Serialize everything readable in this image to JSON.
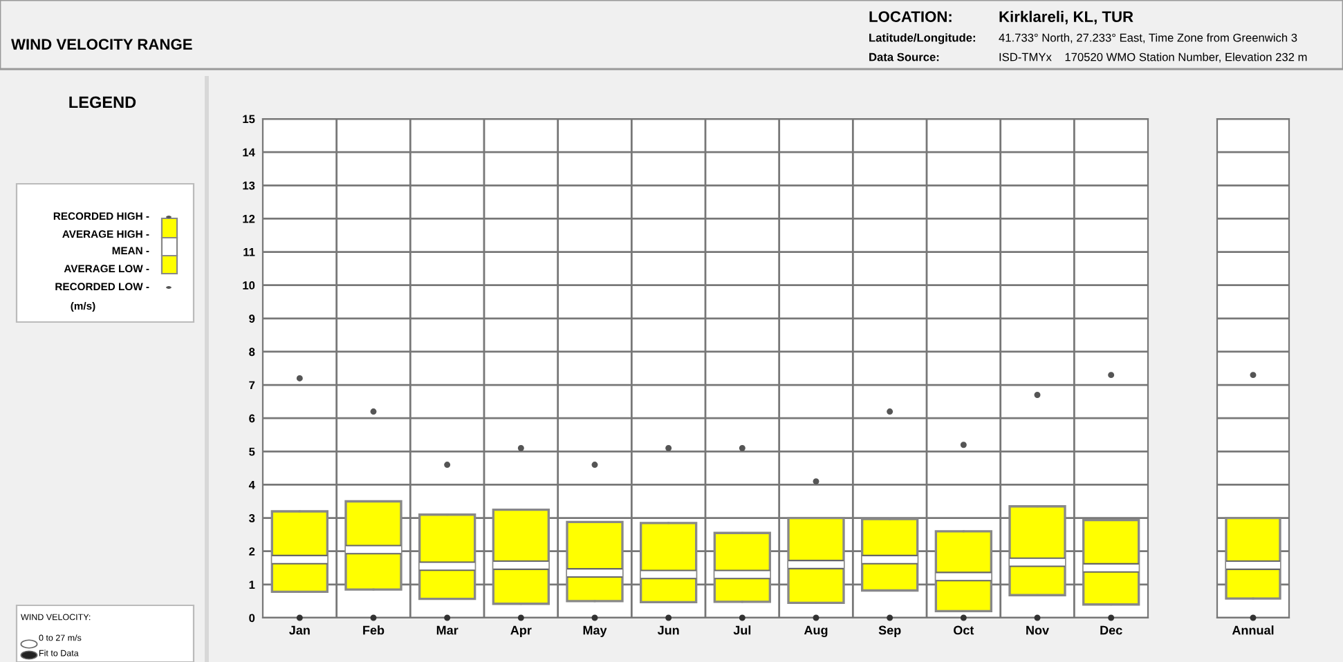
{
  "chart_data": [
    {
      "type": "box",
      "title": "WIND VELOCITY RANGE",
      "categories": [
        "Jan",
        "Feb",
        "Mar",
        "Apr",
        "May",
        "Jun",
        "Jul",
        "Aug",
        "Sep",
        "Oct",
        "Nov",
        "Dec"
      ],
      "color": "#ffff00",
      "boxes": [
        {
          "low": 0.78,
          "q1": 0.78,
          "median": 1.75,
          "q3": 3.2,
          "high": 3.2
        },
        {
          "low": 0.85,
          "q1": 0.85,
          "median": 2.05,
          "q3": 3.5,
          "high": 3.5
        },
        {
          "low": 0.57,
          "q1": 0.57,
          "median": 1.55,
          "q3": 3.1,
          "high": 3.1
        },
        {
          "low": 0.42,
          "q1": 0.42,
          "median": 1.58,
          "q3": 3.25,
          "high": 3.25
        },
        {
          "low": 0.5,
          "q1": 0.5,
          "median": 1.35,
          "q3": 2.88,
          "high": 2.88
        },
        {
          "low": 0.47,
          "q1": 0.47,
          "median": 1.3,
          "q3": 2.85,
          "high": 2.85
        },
        {
          "low": 0.48,
          "q1": 0.48,
          "median": 1.3,
          "q3": 2.55,
          "high": 2.55
        },
        {
          "low": 0.45,
          "q1": 0.45,
          "median": 1.6,
          "q3": 3.0,
          "high": 3.0
        },
        {
          "low": 0.82,
          "q1": 0.82,
          "median": 1.75,
          "q3": 2.97,
          "high": 2.97
        },
        {
          "low": 0.2,
          "q1": 0.2,
          "median": 1.24,
          "q3": 2.6,
          "high": 2.6
        },
        {
          "low": 0.68,
          "q1": 0.68,
          "median": 1.67,
          "q3": 3.35,
          "high": 3.35
        },
        {
          "low": 0.4,
          "q1": 0.4,
          "median": 1.5,
          "q3": 2.94,
          "high": 2.94
        }
      ],
      "series": [
        {
          "type": "scatter",
          "color": "#555555",
          "x": [
            "Jan",
            "Feb",
            "Mar",
            "Apr",
            "May",
            "Jun",
            "Jul",
            "Aug",
            "Sep",
            "Oct",
            "Nov",
            "Dec"
          ],
          "values": [
            7.2,
            6.2,
            4.6,
            5.1,
            4.6,
            5.1,
            5.1,
            4.1,
            6.2,
            5.2,
            6.7,
            7.3
          ]
        },
        {
          "type": "scatter",
          "color": "#333333",
          "x": [
            "Jan",
            "Feb",
            "Mar",
            "Apr",
            "May",
            "Jun",
            "Jul",
            "Aug",
            "Sep",
            "Oct",
            "Nov",
            "Dec"
          ],
          "values": [
            0,
            0,
            0,
            0,
            0,
            0,
            0,
            0,
            0,
            0,
            0,
            0
          ]
        }
      ],
      "ylim": [
        0,
        15
      ],
      "yticks": [
        0,
        1,
        2,
        3,
        4,
        5,
        6,
        7,
        8,
        9,
        10,
        11,
        12,
        13,
        14,
        15
      ],
      "grid": true,
      "annotations": [
        "LOCATION:",
        "Kirklareli, KL, TUR",
        "Latitude/Longitude:",
        "41.733° North, 27.233° East, Time Zone from Greenwich 3",
        "Data Source:",
        "ISD-TMYx    170520 WMO Station Number, Elevation 232 m",
        "LEGEND",
        "RECORDED HIGH -",
        "AVERAGE HIGH -",
        "MEAN -",
        "AVERAGE LOW -",
        "RECORDED LOW -",
        "(m/s)",
        "WIND VELOCITY:",
        "0 to 27 m/s",
        "Fit to Data"
      ]
    },
    {
      "type": "box",
      "categories": [
        "Annual"
      ],
      "color": "#ffff00",
      "boxes": [
        {
          "low": 0.58,
          "q1": 0.58,
          "median": 1.58,
          "q3": 3.0,
          "high": 3.0
        }
      ],
      "series": [
        {
          "type": "scatter",
          "color": "#555555",
          "x": [
            "Annual"
          ],
          "values": [
            7.3
          ]
        },
        {
          "type": "scatter",
          "color": "#333333",
          "x": [
            "Annual"
          ],
          "values": [
            0
          ]
        }
      ],
      "ylim": [
        0,
        15
      ],
      "yticks": [
        0,
        1,
        2,
        3,
        4,
        5,
        6,
        7,
        8,
        9,
        10,
        11,
        12,
        13,
        14,
        15
      ],
      "grid": true,
      "tick_labels": "x"
    }
  ]
}
